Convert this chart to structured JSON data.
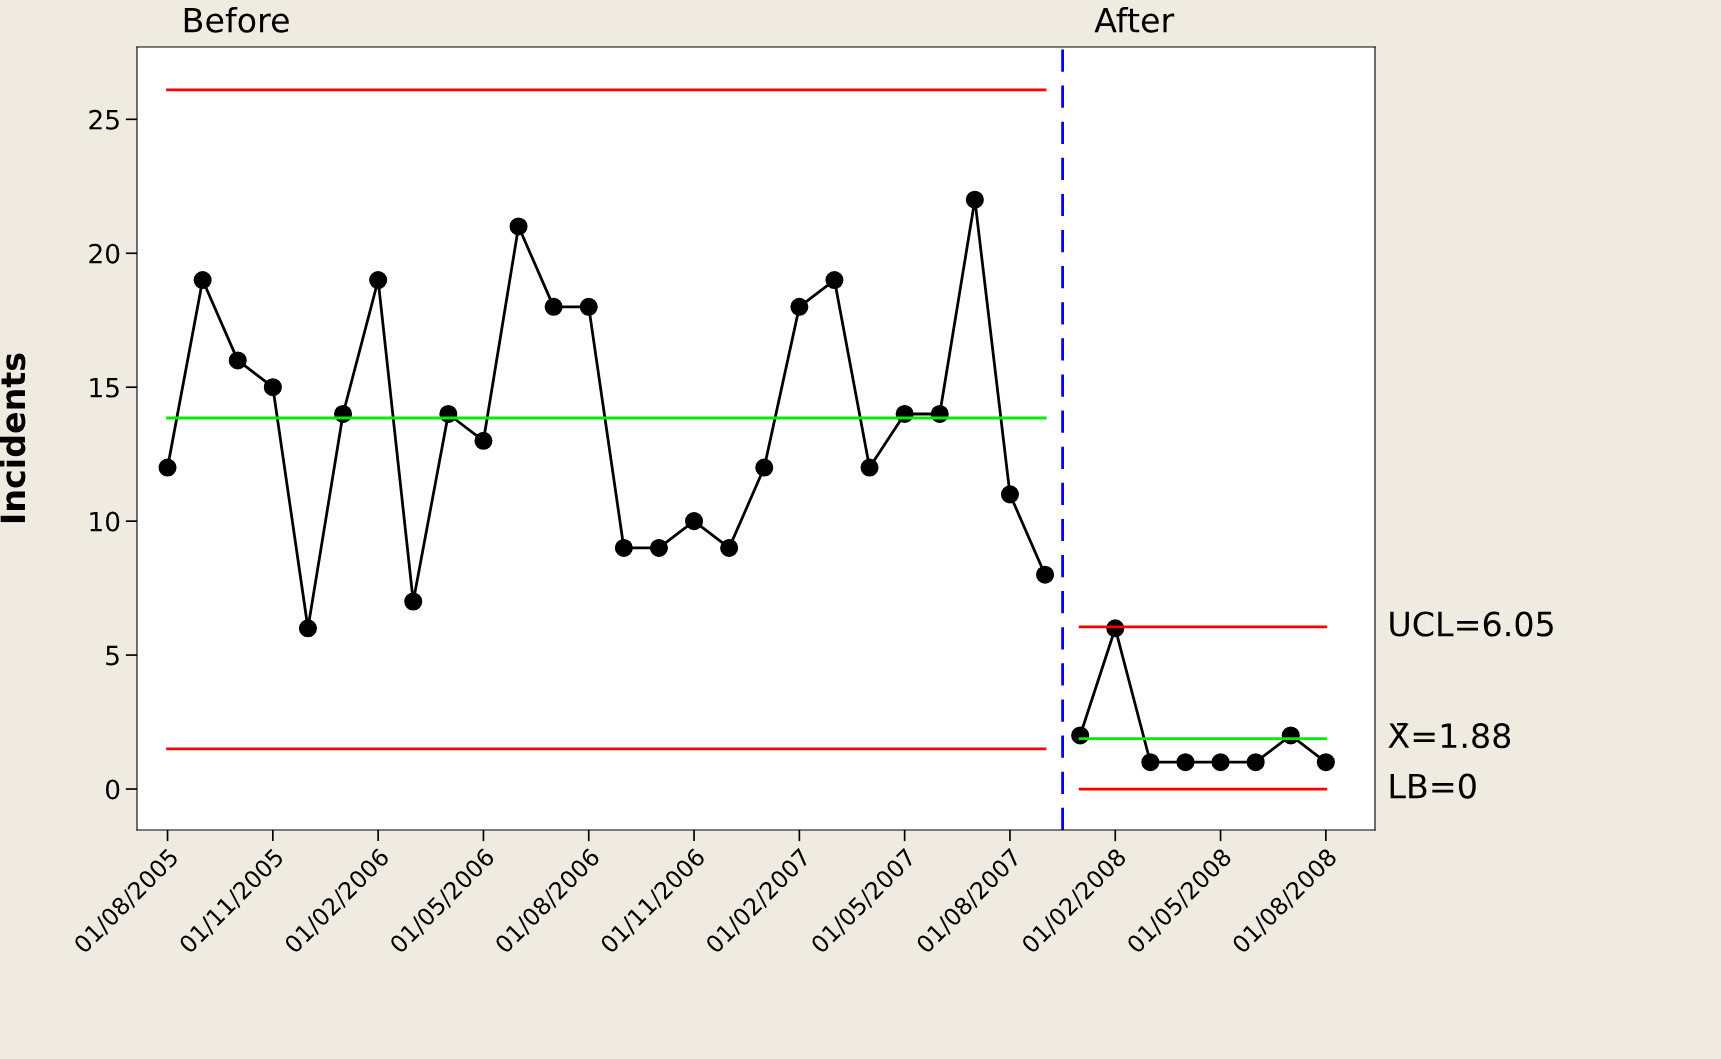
{
  "chart_data": {
    "type": "line",
    "ylabel": "Incidents",
    "categories": [
      "01/08/2005",
      null,
      null,
      "01/11/2005",
      null,
      null,
      "01/02/2006",
      null,
      null,
      "01/05/2006",
      null,
      null,
      "01/08/2006",
      null,
      null,
      "01/11/2006",
      null,
      null,
      "01/02/2007",
      null,
      null,
      "01/05/2007",
      null,
      null,
      "01/08/2007",
      null,
      null,
      "01/02/2008",
      null,
      null,
      "01/05/2008",
      null,
      null,
      "01/08/2008"
    ],
    "series": [
      {
        "color": "#ff0000",
        "marker": "none",
        "values": [
          26.1,
          26.1,
          26.1,
          26.1,
          26.1,
          26.1,
          26.1,
          26.1,
          26.1,
          26.1,
          26.1,
          26.1,
          26.1,
          26.1,
          26.1,
          26.1,
          26.1,
          26.1,
          26.1,
          26.1,
          26.1,
          26.1,
          26.1,
          26.1,
          26.1,
          26.1,
          null,
          null,
          null,
          null,
          null,
          null,
          null,
          null
        ]
      },
      {
        "color": "#00ee00",
        "marker": "none",
        "values": [
          13.85,
          13.85,
          13.85,
          13.85,
          13.85,
          13.85,
          13.85,
          13.85,
          13.85,
          13.85,
          13.85,
          13.85,
          13.85,
          13.85,
          13.85,
          13.85,
          13.85,
          13.85,
          13.85,
          13.85,
          13.85,
          13.85,
          13.85,
          13.85,
          13.85,
          13.85,
          null,
          null,
          null,
          null,
          null,
          null,
          null,
          null
        ]
      },
      {
        "color": "#ff0000",
        "marker": "none",
        "values": [
          1.5,
          1.5,
          1.5,
          1.5,
          1.5,
          1.5,
          1.5,
          1.5,
          1.5,
          1.5,
          1.5,
          1.5,
          1.5,
          1.5,
          1.5,
          1.5,
          1.5,
          1.5,
          1.5,
          1.5,
          1.5,
          1.5,
          1.5,
          1.5,
          1.5,
          1.5,
          null,
          null,
          null,
          null,
          null,
          null,
          null,
          null
        ]
      },
      {
        "color": "#ff0000",
        "marker": "none",
        "values": [
          null,
          null,
          null,
          null,
          null,
          null,
          null,
          null,
          null,
          null,
          null,
          null,
          null,
          null,
          null,
          null,
          null,
          null,
          null,
          null,
          null,
          null,
          null,
          null,
          null,
          null,
          6.05,
          6.05,
          6.05,
          6.05,
          6.05,
          6.05,
          6.05,
          6.05
        ]
      },
      {
        "color": "#00ee00",
        "marker": "none",
        "values": [
          null,
          null,
          null,
          null,
          null,
          null,
          null,
          null,
          null,
          null,
          null,
          null,
          null,
          null,
          null,
          null,
          null,
          null,
          null,
          null,
          null,
          null,
          null,
          null,
          null,
          null,
          1.88,
          1.88,
          1.88,
          1.88,
          1.88,
          1.88,
          1.88,
          1.88
        ]
      },
      {
        "color": "#ff0000",
        "marker": "none",
        "values": [
          null,
          null,
          null,
          null,
          null,
          null,
          null,
          null,
          null,
          null,
          null,
          null,
          null,
          null,
          null,
          null,
          null,
          null,
          null,
          null,
          null,
          null,
          null,
          null,
          null,
          null,
          0,
          0,
          0,
          0,
          0,
          0,
          0,
          0
        ]
      },
      {
        "color": "#000000",
        "marker": "circle",
        "values": [
          12,
          19,
          16,
          15,
          6,
          14,
          19,
          7,
          14,
          13,
          21,
          18,
          18,
          9,
          9,
          10,
          9,
          12,
          18,
          19,
          12,
          14,
          14,
          22,
          11,
          8,
          null,
          null,
          null,
          null,
          null,
          null,
          null,
          null
        ]
      },
      {
        "color": "#000000",
        "marker": "circle",
        "values": [
          null,
          null,
          null,
          null,
          null,
          null,
          null,
          null,
          null,
          null,
          null,
          null,
          null,
          null,
          null,
          null,
          null,
          null,
          null,
          null,
          null,
          null,
          null,
          null,
          null,
          null,
          2,
          6,
          1,
          1,
          1,
          1,
          2,
          1
        ]
      }
    ],
    "annotations": [
      "Before",
      "After",
      "UCL=6.05",
      "X̄=1.88",
      "LB=0"
    ],
    "ylim": [
      -1.53,
      27.7
    ],
    "yticks": [
      0,
      5,
      10,
      15,
      20,
      25
    ],
    "grid": false
  }
}
